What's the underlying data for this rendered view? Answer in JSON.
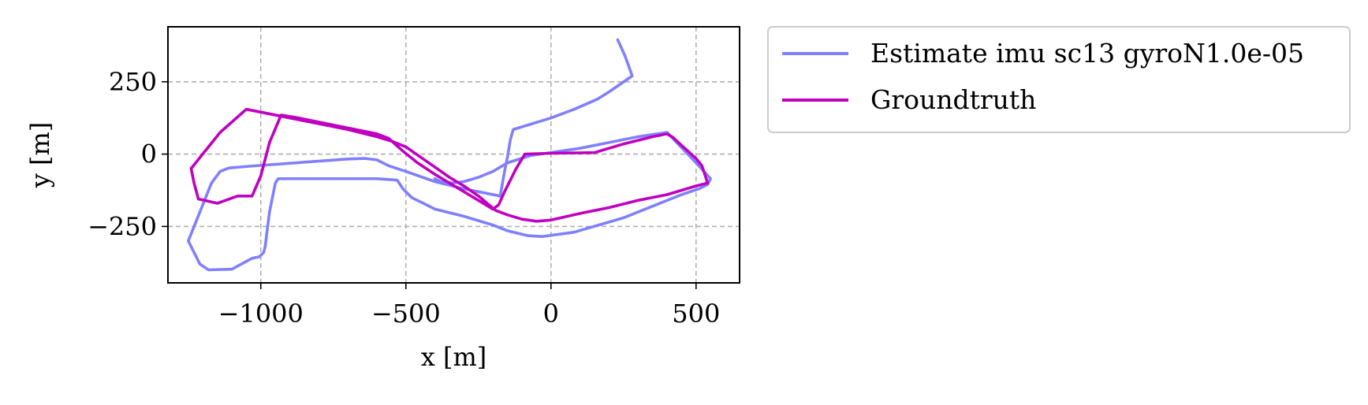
{
  "chart_data": {
    "type": "line",
    "title": "",
    "xlabel": "x [m]",
    "ylabel": "y [m]",
    "xlim": [
      -1320,
      650
    ],
    "ylim": [
      -445,
      440
    ],
    "xticks": [
      -1000,
      -500,
      0,
      500
    ],
    "xtick_labels": [
      "−1000",
      "−500",
      "0",
      "500"
    ],
    "yticks": [
      -250,
      0,
      250
    ],
    "ytick_labels": [
      "−250",
      "0",
      "250"
    ],
    "grid": true,
    "legend_position": "outside-right-top",
    "series": [
      {
        "name": "Estimate imu sc13 gyroN1.0e-05",
        "color": "#8080ff",
        "x": [
          230,
          255,
          280,
          200,
          160,
          80,
          0,
          -130,
          -140,
          -150,
          -160,
          -175,
          -300,
          -400,
          -500,
          -560,
          -600,
          -640,
          -700,
          -1040,
          -1110,
          -1140,
          -1170,
          -1250,
          -1210,
          -1180,
          -1100,
          -1030,
          -1005,
          -990,
          -985,
          -980,
          -970,
          -950,
          -940,
          -600,
          -530,
          -510,
          -480,
          -440,
          -400,
          -300,
          -200,
          -150,
          -80,
          -30,
          80,
          250,
          350,
          450,
          510,
          540,
          550,
          500,
          400,
          300,
          200,
          100,
          0,
          -70,
          -150,
          -200,
          -250,
          -300,
          -340,
          -380,
          -400
        ],
        "y": [
          395,
          340,
          270,
          215,
          190,
          155,
          125,
          85,
          50,
          -10,
          -60,
          -145,
          -120,
          -95,
          -60,
          -40,
          -20,
          -15,
          -17,
          -42,
          -48,
          -60,
          -100,
          -300,
          -380,
          -400,
          -398,
          -360,
          -355,
          -340,
          -320,
          -280,
          -200,
          -100,
          -85,
          -85,
          -90,
          -120,
          -150,
          -170,
          -190,
          -215,
          -245,
          -265,
          -282,
          -285,
          -270,
          -220,
          -180,
          -140,
          -120,
          -105,
          -85,
          -30,
          75,
          60,
          40,
          20,
          5,
          -5,
          -30,
          -60,
          -80,
          -95,
          -100,
          -95,
          -85
        ]
      },
      {
        "name": "Groundtruth",
        "color": "#c000c0",
        "x": [
          -1240,
          -1230,
          -1215,
          -1150,
          -1080,
          -1030,
          -1000,
          -970,
          -930,
          -870,
          -600,
          -560,
          -510,
          -460,
          -400,
          -300,
          -200,
          -180,
          -160,
          -120,
          -90,
          0,
          150,
          250,
          350,
          400,
          420,
          450,
          500,
          520,
          540,
          500,
          400,
          300,
          200,
          100,
          0,
          -50,
          -100,
          -150,
          -190,
          -250,
          -300,
          -350,
          -400,
          -450,
          -500,
          -550,
          -600,
          -700,
          -800,
          -900,
          -1000,
          -1050,
          -1140,
          -1240
        ],
        "y": [
          -50,
          -100,
          -155,
          -170,
          -145,
          -145,
          -75,
          40,
          135,
          125,
          70,
          55,
          10,
          -30,
          -70,
          -130,
          -190,
          -175,
          -130,
          -50,
          0,
          3,
          5,
          35,
          60,
          70,
          58,
          30,
          -15,
          -40,
          -100,
          -110,
          -140,
          -160,
          -185,
          -205,
          -228,
          -232,
          -225,
          -210,
          -195,
          -145,
          -110,
          -80,
          -45,
          -10,
          25,
          45,
          60,
          85,
          105,
          125,
          145,
          155,
          75,
          -50
        ]
      }
    ]
  }
}
